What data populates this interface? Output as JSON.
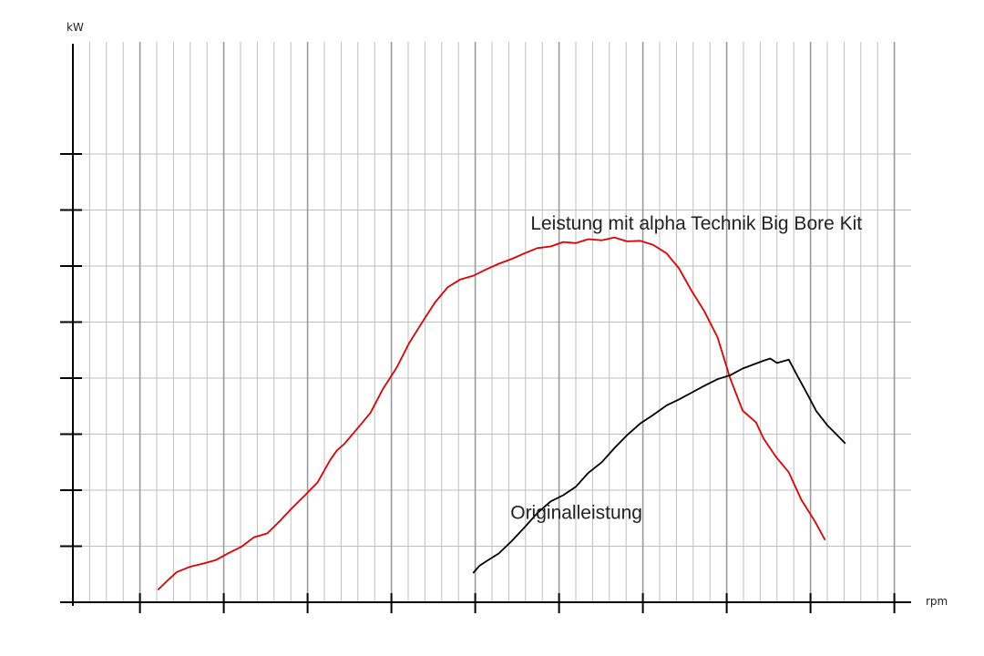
{
  "chart_data": {
    "type": "line",
    "ylabel": "kW",
    "xlabel": "rpm",
    "tick_labels_shown": false,
    "xlim": [
      0,
      100
    ],
    "ylim": [
      0,
      100
    ],
    "x_major_ticks": [
      8,
      18,
      28,
      38,
      48,
      58,
      68,
      78,
      88,
      98
    ],
    "y_major_ticks": [
      10,
      20,
      30,
      40,
      50,
      60,
      70,
      80
    ],
    "grid": true,
    "grid_color": "#bfbfbf",
    "series": [
      {
        "name": "Leistung mit alpha Technik Big Bore Kit",
        "color": "#e00000",
        "x": [
          10.2,
          11.3,
          12.4,
          13.9,
          15.5,
          17.0,
          18.6,
          20.1,
          21.6,
          23.2,
          24.7,
          26.2,
          27.7,
          29.2,
          30.7,
          31.5,
          32.4,
          34.0,
          35.5,
          37.0,
          38.6,
          40.1,
          41.6,
          43.2,
          44.7,
          46.2,
          47.8,
          49.3,
          50.8,
          52.4,
          53.9,
          55.4,
          57.0,
          58.5,
          60.0,
          61.5,
          63.1,
          64.6,
          66.1,
          67.7,
          69.2,
          70.8,
          72.3,
          73.8,
          75.3,
          76.9,
          78.4,
          79.9,
          81.5,
          82.4,
          83.9,
          85.4,
          86.9,
          88.5,
          89.7
        ],
        "y": [
          2.3,
          3.9,
          5.4,
          6.3,
          6.9,
          7.5,
          8.8,
          9.9,
          11.6,
          12.3,
          14.5,
          16.9,
          19.1,
          21.4,
          25.4,
          27.1,
          28.3,
          31.1,
          33.8,
          38.1,
          41.8,
          46.2,
          49.8,
          53.5,
          56.2,
          57.6,
          58.3,
          59.4,
          60.4,
          61.3,
          62.3,
          63.2,
          63.5,
          64.3,
          64.1,
          64.8,
          64.6,
          65.1,
          64.4,
          64.5,
          63.8,
          62.3,
          59.6,
          55.6,
          52.0,
          47.3,
          40.0,
          34.2,
          32.1,
          29.2,
          25.9,
          23.2,
          18.3,
          14.5,
          11.2
        ]
      },
      {
        "name": "Originalleistung",
        "color": "#000000",
        "x": [
          47.8,
          48.5,
          49.3,
          50.8,
          52.4,
          53.9,
          55.4,
          57.0,
          58.5,
          60.0,
          61.5,
          63.1,
          64.6,
          66.1,
          67.7,
          69.2,
          70.8,
          72.3,
          73.8,
          75.3,
          76.9,
          78.4,
          79.9,
          81.5,
          82.4,
          83.2,
          84.0,
          85.4,
          86.4,
          87.6,
          88.7,
          90.0,
          91.2,
          92.1
        ],
        "y": [
          5.3,
          6.5,
          7.3,
          8.7,
          11.0,
          13.4,
          15.9,
          18.0,
          19.1,
          20.6,
          23.1,
          25.0,
          27.5,
          29.8,
          31.9,
          33.4,
          35.1,
          36.2,
          37.4,
          38.6,
          39.8,
          40.5,
          41.7,
          42.6,
          43.1,
          43.5,
          42.7,
          43.3,
          40.5,
          37.2,
          34.1,
          31.6,
          29.8,
          28.4
        ]
      }
    ],
    "annotations": [
      {
        "text": "Leistung mit alpha Technik Big Bore Kit",
        "x": 54.6,
        "y": 66.5,
        "ref_series": 0
      },
      {
        "text": "Originalleistung",
        "x": 52.2,
        "y": 14.9,
        "ref_series": 1
      }
    ]
  }
}
